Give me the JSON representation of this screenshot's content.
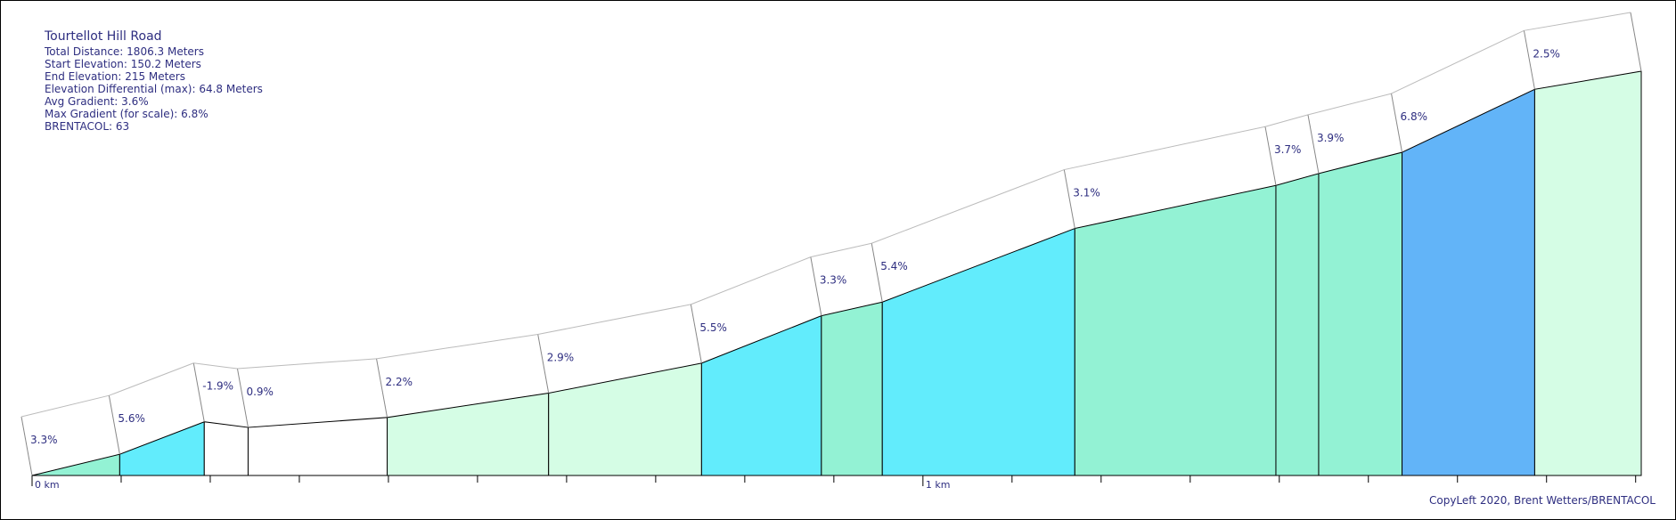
{
  "chart_data": {
    "type": "elevation-profile",
    "title": "Tourtellot Hill Road",
    "info": [
      "Total Distance: 1806.3 Meters",
      "Start Elevation: 150.2 Meters",
      "End Elevation: 215 Meters",
      "Elevation Differential (max): 64.8 Meters",
      "Avg Gradient: 3.6%",
      "Max Gradient (for scale): 6.8%",
      "BRENTACOL: 63"
    ],
    "x": [
      0,
      98.4,
      193.3,
      242.5,
      398.6,
      579.8,
      751.5,
      886,
      954.4,
      1170.5,
      1396.2,
      1444.2,
      1537.8,
      1686.7,
      1806.3
    ],
    "elevation": [
      150.2,
      153.6,
      158.8,
      157.9,
      159.5,
      163.4,
      168.2,
      175.8,
      178.0,
      189.8,
      196.7,
      198.6,
      202.0,
      212.1,
      215
    ],
    "grade_labels": [
      "3.3%",
      "5.6%",
      "-1.9%",
      "0.9%",
      "2.2%",
      "2.9%",
      "5.5%",
      "3.3%",
      "5.4%",
      "3.1%",
      "3.7%",
      "3.9%",
      "6.8%",
      "2.5%"
    ],
    "colors": [
      "#93f2d4",
      "#62ecfc",
      "#ffffff",
      "#ffffff",
      "#d5fde5",
      "#d5fde5",
      "#62ecfc",
      "#93f2d4",
      "#62ecfc",
      "#93f2d4",
      "#93f2d4",
      "#93f2d4",
      "#62b4f8",
      "#d5fde5"
    ],
    "xlim": [
      0,
      1806.3
    ],
    "ylim": [
      150.2,
      215
    ],
    "xticks": [
      {
        "value": 0,
        "label": "0 km"
      },
      {
        "value": 1000,
        "label": "1 km"
      }
    ],
    "minor_xticks": [
      100,
      200,
      300,
      400,
      500,
      600,
      700,
      800,
      900,
      1100,
      1200,
      1300,
      1400,
      1500,
      1600,
      1700,
      1800
    ],
    "credit": "CopyLeft 2020, Brent Wetters/BRENTACOL"
  }
}
